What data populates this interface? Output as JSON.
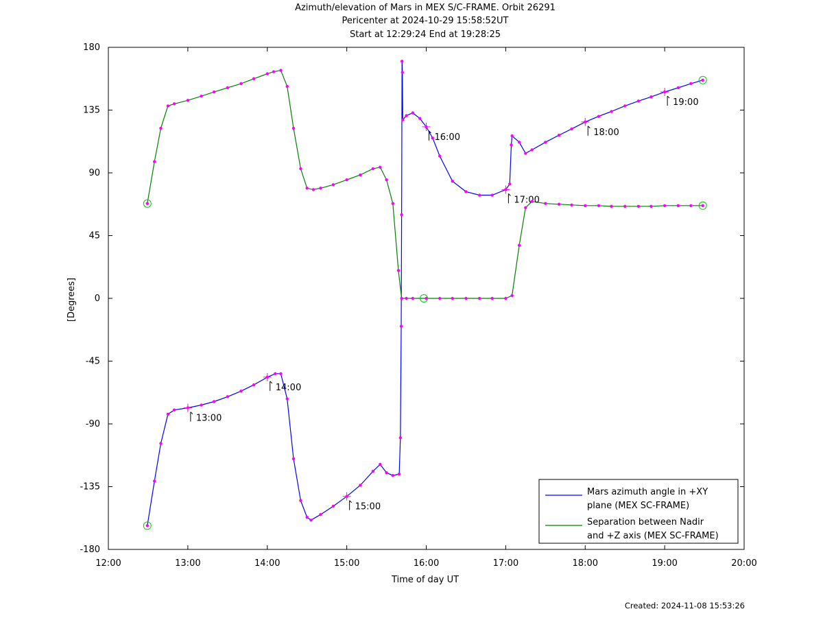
{
  "chart_data": {
    "type": "line",
    "title_lines": [
      "Azimuth/elevation of Mars in MEX S/C-FRAME.  Orbit 26291",
      "Pericenter at 2024-10-29 15:58:52UT",
      "Start at 12:29:24 End at 19:28:25"
    ],
    "xlabel": "Time of day UT",
    "ylabel": "[Degrees]",
    "xlim": [
      12.0,
      20.0
    ],
    "ylim": [
      -180,
      180
    ],
    "x_ticks": [
      12,
      13,
      14,
      15,
      16,
      17,
      18,
      19,
      20
    ],
    "x_tick_labels": [
      "12:00",
      "13:00",
      "14:00",
      "15:00",
      "16:00",
      "17:00",
      "18:00",
      "19:00",
      "20:00"
    ],
    "y_ticks": [
      180,
      135,
      90,
      45,
      0,
      -45,
      -90,
      -135,
      -180
    ],
    "y_tick_labels": [
      "180",
      "135",
      "90",
      "45",
      "0",
      "-45",
      "-90",
      "-135",
      "-180"
    ],
    "grid": false,
    "legend_position": "bottom-right",
    "series": [
      {
        "name_lines": [
          "Mars azimuth angle in +XY",
          "plane (MEX SC-FRAME)"
        ],
        "color": "#0000ff",
        "segments": [
          [
            [
              12.49,
              -163
            ],
            [
              12.58,
              -131
            ],
            [
              12.66,
              -104
            ],
            [
              12.75,
              -83
            ],
            [
              12.83,
              -80
            ],
            [
              13.0,
              -78.5
            ],
            [
              13.17,
              -76.5
            ],
            [
              13.33,
              -74
            ],
            [
              13.5,
              -70.5
            ],
            [
              13.67,
              -66.5
            ],
            [
              13.83,
              -62
            ],
            [
              14.0,
              -56.5
            ],
            [
              14.1,
              -54
            ],
            [
              14.17,
              -54
            ],
            [
              14.25,
              -72
            ],
            [
              14.33,
              -115
            ],
            [
              14.42,
              -145
            ],
            [
              14.5,
              -157
            ],
            [
              14.55,
              -159
            ],
            [
              14.67,
              -155
            ],
            [
              14.83,
              -149
            ],
            [
              15.0,
              -142
            ],
            [
              15.17,
              -134
            ],
            [
              15.33,
              -124
            ],
            [
              15.42,
              -119
            ],
            [
              15.5,
              -125
            ],
            [
              15.58,
              -127
            ],
            [
              15.66,
              -126
            ],
            [
              15.675,
              -100
            ],
            [
              15.685,
              -20
            ],
            [
              15.69,
              60
            ],
            [
              15.695,
              170
            ],
            [
              15.7,
              162
            ],
            [
              15.705,
              128
            ],
            [
              15.75,
              131
            ],
            [
              15.83,
              133
            ],
            [
              15.92,
              129
            ],
            [
              16.0,
              123
            ],
            [
              16.08,
              115
            ],
            [
              16.17,
              102
            ],
            [
              16.33,
              84
            ],
            [
              16.5,
              76.5
            ],
            [
              16.67,
              74
            ],
            [
              16.83,
              74
            ],
            [
              17.0,
              78
            ],
            [
              17.05,
              82
            ],
            [
              17.07,
              110
            ],
            [
              17.08,
              116.5
            ],
            [
              17.17,
              112
            ],
            [
              17.25,
              104
            ],
            [
              17.33,
              106.5
            ],
            [
              17.5,
              112
            ],
            [
              17.67,
              117
            ],
            [
              17.83,
              121.5
            ],
            [
              18.0,
              126.5
            ],
            [
              18.17,
              130.5
            ],
            [
              18.33,
              134
            ],
            [
              18.5,
              138
            ],
            [
              18.67,
              141.5
            ],
            [
              18.83,
              144.5
            ],
            [
              19.0,
              148
            ],
            [
              19.17,
              151
            ],
            [
              19.33,
              154
            ],
            [
              19.48,
              156.5
            ]
          ]
        ],
        "start_marker": [
          [
            12.49,
            -163
          ],
          [
            19.48,
            156.5
          ]
        ],
        "hour_markers": [
          [
            13.0,
            -78.5
          ],
          [
            14.0,
            -56.5
          ],
          [
            15.0,
            -142
          ],
          [
            16.0,
            123
          ],
          [
            17.0,
            78
          ],
          [
            18.0,
            126.5
          ],
          [
            19.0,
            148
          ]
        ],
        "hour_labels": [
          {
            "x": 13.0,
            "y": -78.5,
            "label": "13:00"
          },
          {
            "x": 14.0,
            "y": -56.5,
            "label": "14:00"
          },
          {
            "x": 15.0,
            "y": -142,
            "label": "15:00"
          },
          {
            "x": 16.0,
            "y": 123,
            "label": "16:00"
          },
          {
            "x": 17.0,
            "y": 78,
            "label": "17:00"
          },
          {
            "x": 18.0,
            "y": 126.5,
            "label": "18:00"
          },
          {
            "x": 19.0,
            "y": 148,
            "label": "19:00"
          }
        ]
      },
      {
        "name_lines": [
          "Separation between Nadir",
          "and +Z axis (MEX SC-FRAME)"
        ],
        "color": "#008000",
        "segments": [
          [
            [
              12.49,
              68
            ],
            [
              12.58,
              98
            ],
            [
              12.66,
              122
            ],
            [
              12.75,
              138
            ],
            [
              12.83,
              139.5
            ],
            [
              13.0,
              142
            ],
            [
              13.17,
              145
            ],
            [
              13.33,
              148
            ],
            [
              13.5,
              151
            ],
            [
              13.67,
              154
            ],
            [
              13.83,
              157.5
            ],
            [
              14.0,
              161
            ],
            [
              14.08,
              162.5
            ],
            [
              14.17,
              163.5
            ],
            [
              14.25,
              152
            ],
            [
              14.33,
              122
            ],
            [
              14.42,
              93
            ],
            [
              14.5,
              79
            ],
            [
              14.58,
              78
            ],
            [
              14.67,
              79
            ],
            [
              14.83,
              81.5
            ],
            [
              15.0,
              85
            ],
            [
              15.17,
              88.5
            ],
            [
              15.33,
              93
            ],
            [
              15.42,
              94
            ],
            [
              15.5,
              85
            ],
            [
              15.58,
              68
            ],
            [
              15.65,
              20
            ],
            [
              15.69,
              0
            ],
            [
              15.75,
              0
            ],
            [
              15.83,
              0
            ],
            [
              16.0,
              0
            ],
            [
              16.17,
              0
            ],
            [
              16.33,
              0
            ],
            [
              16.5,
              0
            ],
            [
              16.67,
              0
            ],
            [
              16.83,
              0
            ],
            [
              17.0,
              0
            ],
            [
              17.08,
              2
            ],
            [
              17.17,
              38
            ],
            [
              17.25,
              65
            ],
            [
              17.33,
              69.5
            ],
            [
              17.5,
              68
            ],
            [
              17.67,
              67.5
            ],
            [
              17.83,
              67
            ],
            [
              18.0,
              66.5
            ],
            [
              18.17,
              66.5
            ],
            [
              18.33,
              66
            ],
            [
              18.5,
              66
            ],
            [
              18.67,
              66
            ],
            [
              18.83,
              66
            ],
            [
              19.0,
              66.5
            ],
            [
              19.17,
              66.5
            ],
            [
              19.33,
              66.5
            ],
            [
              19.48,
              66.5
            ]
          ]
        ],
        "start_marker": [
          [
            12.49,
            68
          ],
          [
            15.97,
            0
          ],
          [
            19.48,
            66.5
          ]
        ]
      }
    ]
  },
  "footer": {
    "created": "Created: 2024-11-08 15:53:26"
  }
}
